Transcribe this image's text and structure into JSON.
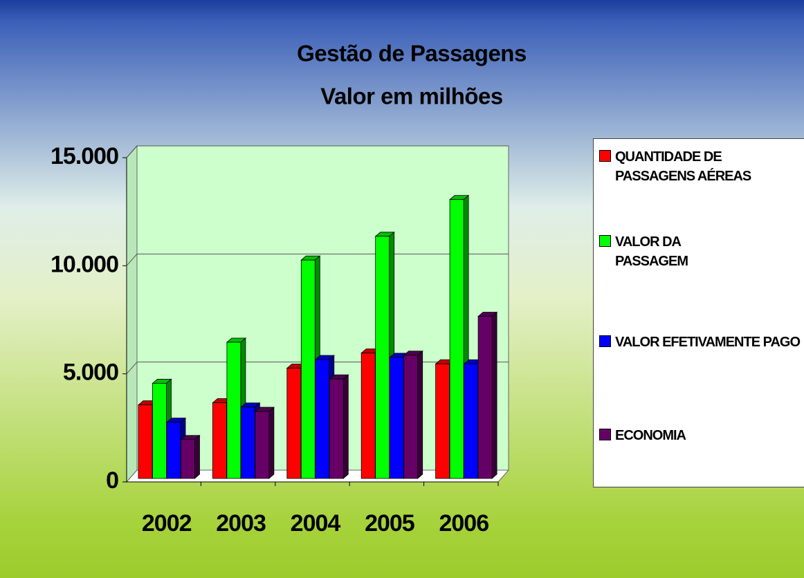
{
  "chart_data": {
    "type": "bar",
    "title": "Gestão de Passagens",
    "subtitle": "Valor em  milhões",
    "categories": [
      "2002",
      "2003",
      "2004",
      "2005",
      "2006"
    ],
    "series": [
      {
        "name": "QUANTIDADE DE PASSAGENS AÉREAS",
        "color": "#ff0000",
        "values": [
          3400,
          3500,
          5100,
          5800,
          5300
        ]
      },
      {
        "name": "VALOR DA PASSAGEM",
        "color": "#00ff00",
        "values": [
          4400,
          6300,
          10100,
          11200,
          12900
        ]
      },
      {
        "name": "VALOR EFETIVAMENTE PAGO",
        "color": "#0000ff",
        "values": [
          2600,
          3300,
          5500,
          5600,
          5300
        ]
      },
      {
        "name": "ECONOMIA",
        "color": "#660066",
        "values": [
          1800,
          3100,
          4600,
          5700,
          7500
        ]
      }
    ],
    "ylim": [
      0,
      15000
    ],
    "yticks": [
      0,
      {
        "value": 5000,
        "label": "5.000"
      },
      {
        "value": 10000,
        "label": "10.000"
      },
      {
        "value": 15000,
        "label": "15.000"
      }
    ],
    "grid": true,
    "legend": "right"
  }
}
